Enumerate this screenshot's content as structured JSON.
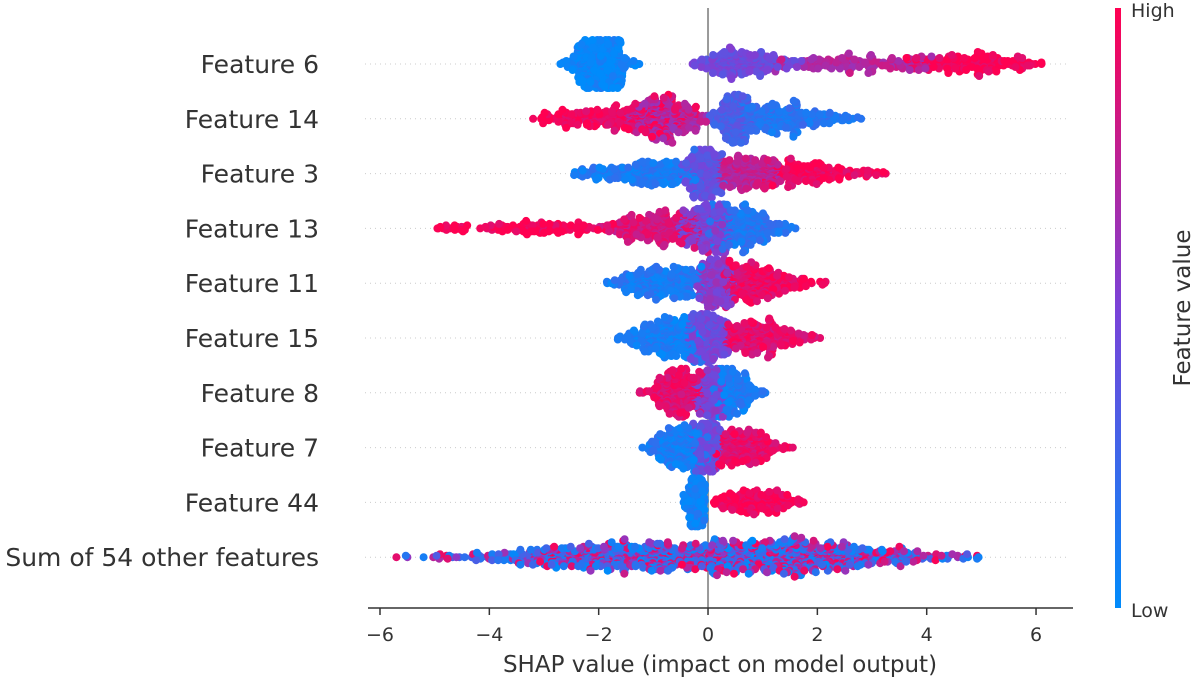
{
  "chart_data": {
    "type": "scatter",
    "subtype": "shap-beeswarm",
    "xlabel": "SHAP value (impact on model output)",
    "xlim": [
      -6.6,
      6.6
    ],
    "xticks": [
      -6,
      -4,
      -2,
      0,
      2,
      4,
      6
    ],
    "xtick_labels": [
      "−6",
      "−4",
      "−2",
      "0",
      "2",
      "4",
      "6"
    ],
    "features": [
      {
        "name": "Feature 6",
        "min": -2.7,
        "max": 6.1,
        "clusters": [
          {
            "center": -1.95,
            "sd": 0.25,
            "lo": -2.7,
            "hi": -0.9,
            "n": 420,
            "val": 0.03
          },
          {
            "center": 0.6,
            "sd": 0.45,
            "lo": -0.3,
            "hi": 2.0,
            "n": 220,
            "val": 0.45
          },
          {
            "center": 2.8,
            "sd": 1.1,
            "lo": 1.2,
            "hi": 4.2,
            "n": 160,
            "val": 0.72
          },
          {
            "center": 4.8,
            "sd": 0.6,
            "lo": 3.6,
            "hi": 6.1,
            "n": 180,
            "val": 0.98
          }
        ]
      },
      {
        "name": "Feature 14",
        "min": -3.2,
        "max": 2.8,
        "clusters": [
          {
            "center": -1.6,
            "sd": 0.9,
            "lo": -3.2,
            "hi": -0.2,
            "n": 260,
            "val": 0.95
          },
          {
            "center": -0.7,
            "sd": 0.4,
            "lo": -1.5,
            "hi": 0.0,
            "n": 200,
            "val": 0.7
          },
          {
            "center": 0.45,
            "sd": 0.2,
            "lo": 0.0,
            "hi": 0.9,
            "n": 180,
            "val": 0.3
          },
          {
            "center": 1.3,
            "sd": 0.6,
            "lo": 0.6,
            "hi": 2.8,
            "n": 240,
            "val": 0.15
          }
        ]
      },
      {
        "name": "Feature 3",
        "min": -2.45,
        "max": 3.25,
        "clusters": [
          {
            "center": -1.0,
            "sd": 0.7,
            "lo": -2.45,
            "hi": -0.1,
            "n": 260,
            "val": 0.1
          },
          {
            "center": -0.05,
            "sd": 0.2,
            "lo": -0.5,
            "hi": 0.3,
            "n": 200,
            "val": 0.4
          },
          {
            "center": 0.6,
            "sd": 0.4,
            "lo": 0.2,
            "hi": 1.4,
            "n": 200,
            "val": 0.75
          },
          {
            "center": 1.8,
            "sd": 0.7,
            "lo": 1.0,
            "hi": 3.25,
            "n": 180,
            "val": 0.95
          }
        ]
      },
      {
        "name": "Feature 13",
        "min": -4.95,
        "max": 1.6,
        "clusters": [
          {
            "center": -3.0,
            "sd": 1.1,
            "lo": -4.95,
            "hi": -1.0,
            "n": 150,
            "val": 0.98
          },
          {
            "center": -0.9,
            "sd": 0.5,
            "lo": -2.0,
            "hi": 0.0,
            "n": 220,
            "val": 0.85
          },
          {
            "center": 0.0,
            "sd": 0.3,
            "lo": -0.6,
            "hi": 0.4,
            "n": 200,
            "val": 0.5
          },
          {
            "center": 0.6,
            "sd": 0.4,
            "lo": 0.0,
            "hi": 1.6,
            "n": 260,
            "val": 0.15
          }
        ]
      },
      {
        "name": "Feature 11",
        "min": -1.85,
        "max": 2.15,
        "clusters": [
          {
            "center": -0.8,
            "sd": 0.45,
            "lo": -1.85,
            "hi": 0.0,
            "n": 260,
            "val": 0.12
          },
          {
            "center": 0.15,
            "sd": 0.2,
            "lo": -0.2,
            "hi": 0.5,
            "n": 200,
            "val": 0.55
          },
          {
            "center": 0.8,
            "sd": 0.45,
            "lo": 0.3,
            "hi": 2.15,
            "n": 260,
            "val": 0.92
          }
        ]
      },
      {
        "name": "Feature 15",
        "min": -1.65,
        "max": 2.05,
        "clusters": [
          {
            "center": -0.7,
            "sd": 0.4,
            "lo": -1.65,
            "hi": 0.0,
            "n": 280,
            "val": 0.1
          },
          {
            "center": 0.0,
            "sd": 0.25,
            "lo": -0.4,
            "hi": 0.4,
            "n": 220,
            "val": 0.45
          },
          {
            "center": 0.9,
            "sd": 0.45,
            "lo": 0.3,
            "hi": 2.05,
            "n": 240,
            "val": 0.9
          }
        ]
      },
      {
        "name": "Feature 8",
        "min": -1.25,
        "max": 1.05,
        "clusters": [
          {
            "center": -0.55,
            "sd": 0.25,
            "lo": -1.25,
            "hi": -0.1,
            "n": 240,
            "val": 0.9
          },
          {
            "center": 0.05,
            "sd": 0.15,
            "lo": -0.25,
            "hi": 0.3,
            "n": 160,
            "val": 0.5
          },
          {
            "center": 0.4,
            "sd": 0.2,
            "lo": 0.1,
            "hi": 1.05,
            "n": 200,
            "val": 0.1
          }
        ]
      },
      {
        "name": "Feature 7",
        "min": -1.2,
        "max": 1.55,
        "clusters": [
          {
            "center": -0.45,
            "sd": 0.3,
            "lo": -1.2,
            "hi": 0.0,
            "n": 240,
            "val": 0.1
          },
          {
            "center": 0.0,
            "sd": 0.15,
            "lo": -0.3,
            "hi": 0.3,
            "n": 180,
            "val": 0.45
          },
          {
            "center": 0.6,
            "sd": 0.35,
            "lo": 0.1,
            "hi": 1.55,
            "n": 220,
            "val": 0.9
          }
        ]
      },
      {
        "name": "Feature 44",
        "min": -0.45,
        "max": 1.75,
        "clusters": [
          {
            "center": -0.2,
            "sd": 0.1,
            "lo": -0.45,
            "hi": -0.05,
            "n": 220,
            "val": 0.05
          },
          {
            "center": 0.8,
            "sd": 0.45,
            "lo": 0.0,
            "hi": 1.75,
            "n": 180,
            "val": 0.97
          }
        ]
      },
      {
        "name": "Sum of 54 other features",
        "min": -5.7,
        "max": 4.95,
        "clusters": [
          {
            "center": -1.5,
            "sd": 1.5,
            "lo": -5.7,
            "hi": 1.5,
            "n": 650,
            "val": "mixed"
          },
          {
            "center": 1.7,
            "sd": 1.3,
            "lo": -1.0,
            "hi": 4.95,
            "n": 650,
            "val": "mixed"
          }
        ]
      }
    ],
    "colorbar": {
      "title": "Feature value",
      "high_label": "High",
      "low_label": "Low",
      "low_color": "#008bfb",
      "high_color": "#ff0051",
      "mid_color": "#7a42d8"
    }
  }
}
